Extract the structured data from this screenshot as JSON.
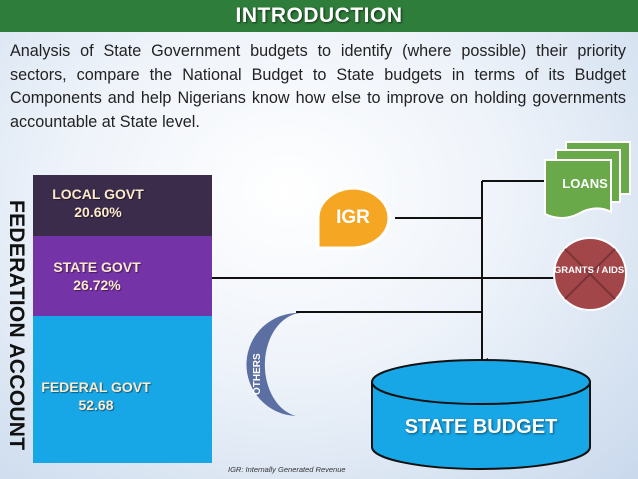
{
  "title": "INTRODUCTION",
  "intro_text": "Analysis of State Government budgets to identify (where possible) their priority sectors, compare the National Budget to State budgets in terms of its Budget Components and help Nigerians know how else to improve on holding governments accountable at State level.",
  "federation_account": {
    "label": "FEDERATION ACCOUNT",
    "segments": [
      {
        "name": "LOCAL GOVT",
        "value": "20.60%",
        "color": "#3c2c4c"
      },
      {
        "name": "STATE GOVT",
        "value": "26.72%",
        "color": "#7433a6"
      },
      {
        "name": "FEDERAL GOVT",
        "value": "52.68",
        "color": "#17a6e6"
      }
    ]
  },
  "sources": {
    "igr": "IGR",
    "loans": "LOANS",
    "grants": "GRANTS / AIDS",
    "others": "OTHERS"
  },
  "target": "STATE BUDGET",
  "footnote": "IGR: Internally Generated Revenue",
  "colors": {
    "title_bar": "#2f7d3a",
    "igr": "#f5a623",
    "loans": "#6aa94a",
    "grants": "#a3464a",
    "others": "#5c6fa3",
    "budget": "#17a6e6"
  }
}
